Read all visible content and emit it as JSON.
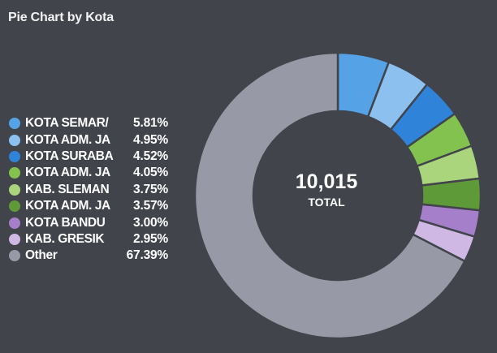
{
  "title": "Pie Chart by Kota",
  "chart_data": {
    "type": "pie",
    "donut": true,
    "total_value": "10,015",
    "total_label": "TOTAL",
    "legend_placement": "left",
    "slices": [
      {
        "label": "KOTA SEMARANG",
        "display": "KOTA SEMAR/",
        "pct_text": "5.81%",
        "value": 5.81,
        "color": "#55a3e6"
      },
      {
        "label": "KOTA ADM. JA",
        "display": "KOTA ADM. JA",
        "pct_text": "4.95%",
        "value": 4.95,
        "color": "#8cc0ef"
      },
      {
        "label": "KOTA SURABAYA",
        "display": "KOTA SURABA",
        "pct_text": "4.52%",
        "value": 4.52,
        "color": "#2f83d8"
      },
      {
        "label": "KOTA ADM. JA",
        "display": "KOTA ADM. JA",
        "pct_text": "4.05%",
        "value": 4.05,
        "color": "#84c24f"
      },
      {
        "label": "KAB. SLEMAN",
        "display": "KAB. SLEMAN",
        "pct_text": "3.75%",
        "value": 3.75,
        "color": "#abd57d"
      },
      {
        "label": "KOTA ADM. JA",
        "display": "KOTA ADM. JA",
        "pct_text": "3.57%",
        "value": 3.57,
        "color": "#5f9a38"
      },
      {
        "label": "KOTA BANDUNG",
        "display": "KOTA BANDU",
        "pct_text": "3.00%",
        "value": 3.0,
        "color": "#a57fc9"
      },
      {
        "label": "KAB. GRESIK",
        "display": "KAB. GRESIK",
        "pct_text": "2.95%",
        "value": 2.95,
        "color": "#cfb8e4"
      },
      {
        "label": "Other",
        "display": "Other",
        "pct_text": "67.39%",
        "value": 67.39,
        "color": "#979aa6"
      }
    ]
  }
}
